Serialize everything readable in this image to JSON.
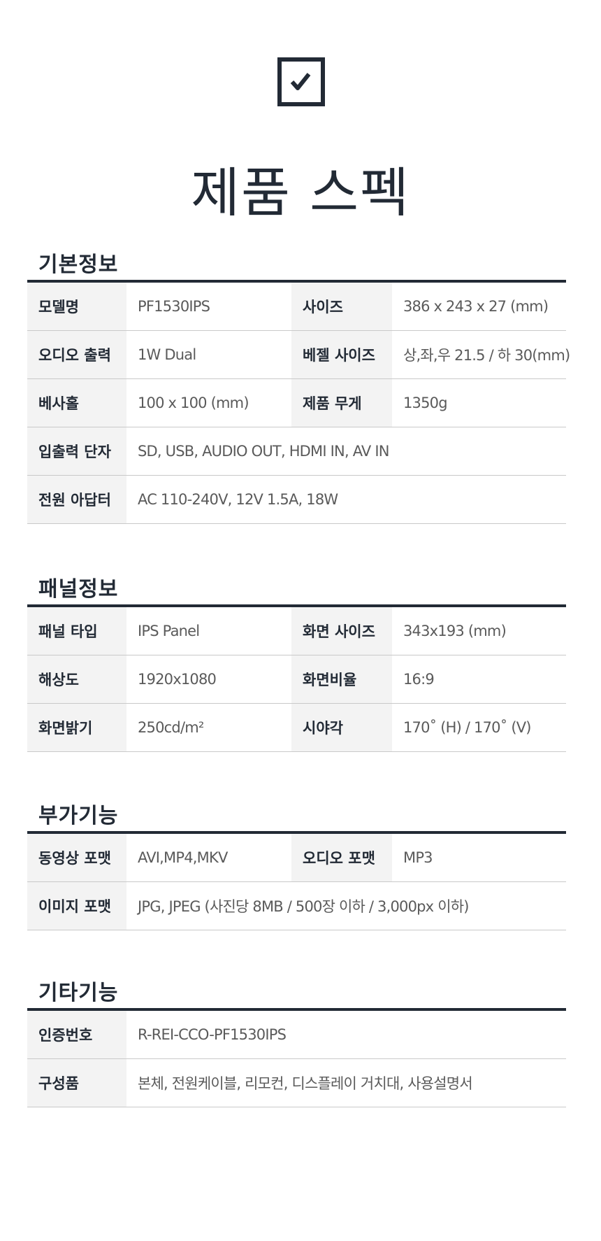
{
  "header": {
    "icon": "checkbox-checked-icon",
    "title": "제품 스펙"
  },
  "sections": [
    {
      "title": "기본정보",
      "rows": [
        [
          {
            "label": "모델명",
            "value": "PF1530IPS"
          },
          {
            "label": "사이즈",
            "value": "386 x 243 x 27 (mm)"
          }
        ],
        [
          {
            "label": "오디오 출력",
            "value": "1W Dual"
          },
          {
            "label": "베젤 사이즈",
            "value": "상,좌,우 21.5 / 하 30(mm)"
          }
        ],
        [
          {
            "label": "베사홀",
            "value": "100 x 100 (mm)"
          },
          {
            "label": "제품 무게",
            "value": "1350g"
          }
        ],
        [
          {
            "label": "입출력 단자",
            "value": "SD, USB, AUDIO OUT, HDMI IN, AV IN"
          }
        ],
        [
          {
            "label": "전원 아답터",
            "value": "AC 110-240V, 12V 1.5A, 18W"
          }
        ]
      ]
    },
    {
      "title": "패널정보",
      "rows": [
        [
          {
            "label": "패널 타입",
            "value": "IPS Panel"
          },
          {
            "label": "화면 사이즈",
            "value": "343x193 (mm)"
          }
        ],
        [
          {
            "label": "해상도",
            "value": "1920x1080"
          },
          {
            "label": "화면비율",
            "value": "16:9"
          }
        ],
        [
          {
            "label": "화면밝기",
            "value": "250cd/m²"
          },
          {
            "label": "시야각",
            "value": "170˚ (H) / 170˚ (V)"
          }
        ]
      ]
    },
    {
      "title": "부가기능",
      "rows": [
        [
          {
            "label": "동영상 포맷",
            "value": "AVI,MP4,MKV"
          },
          {
            "label": "오디오 포맷",
            "value": "MP3"
          }
        ],
        [
          {
            "label": "이미지 포맷",
            "value": "JPG, JPEG (사진당 8MB / 500장 이하 / 3,000px 이하)"
          }
        ]
      ]
    },
    {
      "title": "기타기능",
      "rows": [
        [
          {
            "label": "인증번호",
            "value": "R-REI-CCO-PF1530IPS"
          }
        ],
        [
          {
            "label": "구성품",
            "value": "본체, 전원케이블, 리모컨, 디스플레이 거치대, 사용설명서"
          }
        ]
      ]
    }
  ]
}
